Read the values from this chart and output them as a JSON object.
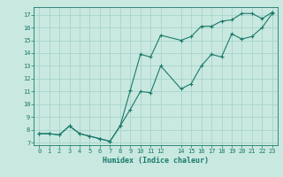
{
  "xlabel": "Humidex (Indice chaleur)",
  "bg_color": "#c8e8e0",
  "line_color": "#1a7a6a",
  "grid_color": "#a8d4cc",
  "xlim": [
    -0.5,
    23.5
  ],
  "ylim": [
    6.8,
    17.6
  ],
  "yticks": [
    7,
    8,
    9,
    10,
    11,
    12,
    13,
    14,
    15,
    16,
    17
  ],
  "xticks": [
    0,
    1,
    2,
    3,
    4,
    5,
    6,
    7,
    8,
    9,
    10,
    11,
    12,
    14,
    15,
    16,
    17,
    18,
    19,
    20,
    21,
    22,
    23
  ],
  "line1_x": [
    0,
    1,
    2,
    3,
    4,
    5,
    6,
    7,
    8,
    9,
    10,
    11,
    12,
    14,
    15,
    16,
    17,
    18,
    19,
    20,
    21,
    22,
    23
  ],
  "line1_y": [
    7.7,
    7.7,
    7.6,
    8.3,
    7.7,
    7.5,
    7.3,
    7.1,
    8.3,
    9.6,
    11.0,
    10.9,
    13.0,
    11.2,
    11.6,
    13.0,
    13.9,
    13.7,
    15.5,
    15.1,
    15.3,
    16.0,
    17.1
  ],
  "line2_x": [
    0,
    1,
    2,
    3,
    4,
    5,
    6,
    7,
    8,
    9,
    10,
    11,
    12,
    14,
    15,
    16,
    17,
    18,
    19,
    20,
    21,
    22,
    23
  ],
  "line2_y": [
    7.7,
    7.7,
    7.6,
    8.3,
    7.7,
    7.5,
    7.3,
    7.1,
    8.3,
    11.1,
    13.9,
    13.7,
    15.4,
    15.0,
    15.3,
    16.1,
    16.1,
    16.5,
    16.6,
    17.1,
    17.1,
    16.7,
    17.2
  ]
}
